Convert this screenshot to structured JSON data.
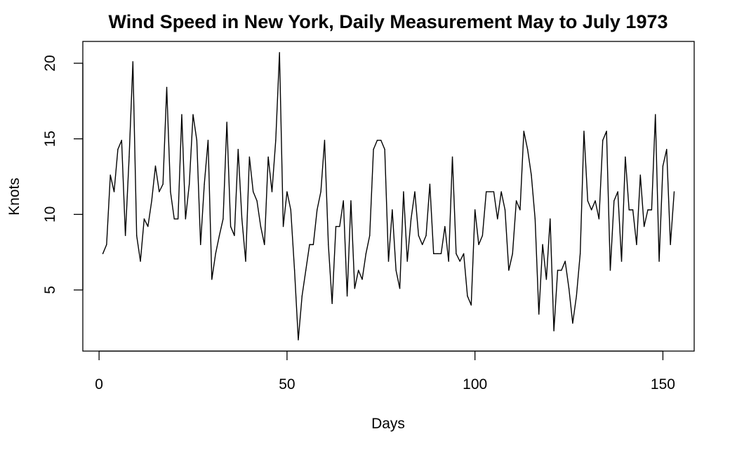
{
  "chart_data": {
    "type": "line",
    "title": "Wind Speed in New York, Daily Measurement May to July 1973",
    "xlabel": "Days",
    "ylabel": "Knots",
    "xlim": [
      0,
      160
    ],
    "ylim": [
      1.7,
      20.7
    ],
    "x_ticks": [
      0,
      50,
      100,
      150
    ],
    "y_ticks": [
      5,
      10,
      15,
      20
    ],
    "grid": false,
    "legend": "none",
    "line_color": "#000000",
    "series": [
      {
        "values": [
          7.4,
          8.0,
          12.6,
          11.5,
          14.3,
          14.9,
          8.6,
          13.8,
          20.1,
          8.6,
          6.9,
          9.7,
          9.2,
          10.9,
          13.2,
          11.5,
          12.0,
          18.4,
          11.5,
          9.7,
          9.7,
          16.6,
          9.7,
          12.0,
          16.6,
          14.9,
          8.0,
          12.0,
          14.9,
          5.7,
          7.4,
          8.6,
          9.7,
          16.1,
          9.2,
          8.6,
          14.3,
          9.7,
          6.9,
          13.8,
          11.5,
          10.9,
          9.2,
          8.0,
          13.8,
          11.5,
          14.9,
          20.7,
          9.2,
          11.5,
          10.3,
          6.3,
          1.7,
          4.6,
          6.3,
          8.0,
          8.0,
          10.3,
          11.5,
          14.9,
          8.0,
          4.1,
          9.2,
          9.2,
          10.9,
          4.6,
          10.9,
          5.1,
          6.3,
          5.7,
          7.4,
          8.6,
          14.3,
          14.9,
          14.9,
          14.3,
          6.9,
          10.3,
          6.3,
          5.1,
          11.5,
          6.9,
          9.7,
          11.5,
          8.6,
          8.0,
          8.6,
          12.0,
          7.4,
          7.4,
          7.4,
          9.2,
          6.9,
          13.8,
          7.4,
          6.9,
          7.4,
          4.6,
          4.0,
          10.3,
          8.0,
          8.6,
          11.5,
          11.5,
          11.5,
          9.7,
          11.5,
          10.3,
          6.3,
          7.4,
          10.9,
          10.3,
          15.5,
          14.3,
          12.6,
          9.7,
          3.4,
          8.0,
          5.7,
          9.7,
          2.3,
          6.3,
          6.3,
          6.9,
          5.1,
          2.8,
          4.6,
          7.4,
          15.5,
          10.9,
          10.3,
          10.9,
          9.7,
          14.9,
          15.5,
          6.3,
          10.9,
          11.5,
          6.9,
          13.8,
          10.3,
          10.3,
          8.0,
          12.6,
          9.2,
          10.3,
          10.3,
          16.6,
          6.9,
          13.2,
          14.3,
          8.0,
          11.5
        ]
      }
    ]
  }
}
